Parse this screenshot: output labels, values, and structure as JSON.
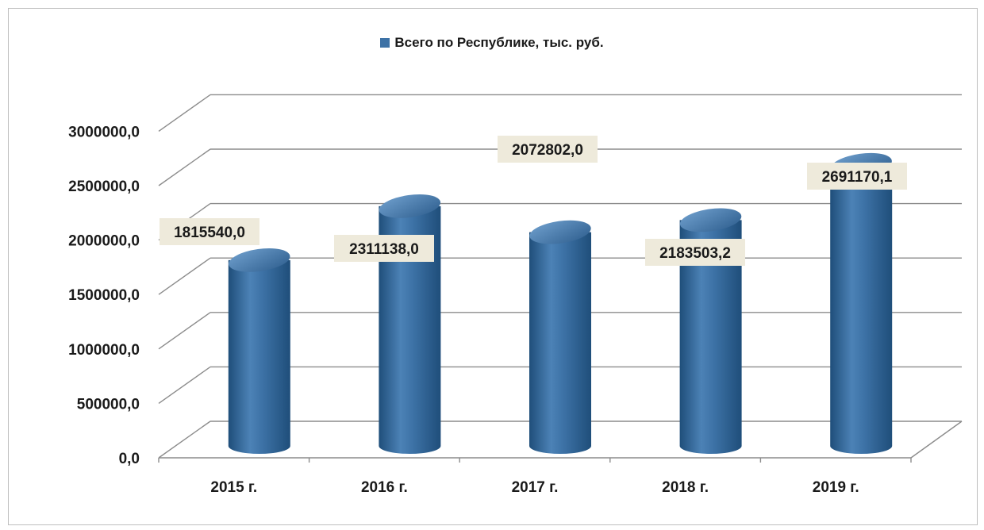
{
  "chart_data": {
    "type": "bar",
    "style": "3d-cylinder",
    "categories": [
      "2015 г.",
      "2016 г.",
      "2017 г.",
      "2018 г.",
      "2019 г."
    ],
    "series": [
      {
        "name": "Всего  по Республике, тыс. руб.",
        "values": [
          1815540.0,
          2311138.0,
          2072802.0,
          2183503.2,
          2691170.1
        ],
        "color": "#3d72a6"
      }
    ],
    "data_labels": [
      "1815540,0",
      "2311138,0",
      "2072802,0",
      "2183503,2",
      "2691170,1"
    ],
    "y_ticks": [
      "0,0",
      "500000,0",
      "1000000,0",
      "1500000,0",
      "2000000,0",
      "2500000,0",
      "3000000,0"
    ],
    "ylim": [
      0,
      3000000
    ],
    "grid": true,
    "legend_position": "top"
  },
  "colors": {
    "bar_dark": "#1f4e7a",
    "bar_mid": "#3d72a6",
    "bar_light": "#6f9fcd",
    "label_bg": "#eeeadb",
    "grid": "#8c8c8c"
  }
}
